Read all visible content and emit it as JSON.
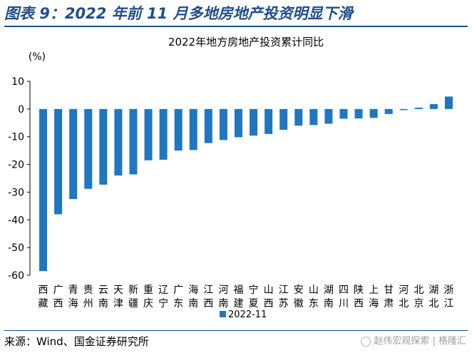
{
  "figure_title": "图表 9：2022 年前 11 月多地房地产投资明显下滑",
  "source": "来源：Wind、国金证券研究所",
  "watermark": "赵伟宏观探索 | 格隆汇",
  "colors": {
    "bar": "#1f77c0",
    "title": "#1f4e8c"
  },
  "chart_data": {
    "type": "bar",
    "title": "2022年地方房地产投资累计同比",
    "unit_label": "(%)",
    "ylim": [
      -60,
      10
    ],
    "yticks": [
      10,
      0,
      -10,
      -20,
      -30,
      -40,
      -50,
      -60
    ],
    "legend": {
      "label": "2022-11",
      "position": "bottom-left"
    },
    "categories": [
      "西藏",
      "广西",
      "青海",
      "贵州",
      "云南",
      "天津",
      "新疆",
      "重庆",
      "辽宁",
      "广东",
      "海南",
      "江西",
      "河南",
      "福建",
      "宁夏",
      "山西",
      "江苏",
      "安徽",
      "山东",
      "湖南",
      "四川",
      "陕西",
      "上海",
      "甘肃",
      "河北",
      "北京",
      "湖北",
      "浙江"
    ],
    "series": [
      {
        "name": "2022-11",
        "values": [
          -58.5,
          -38,
          -32.5,
          -28.8,
          -27.3,
          -24,
          -23.6,
          -18.5,
          -18.3,
          -15,
          -14.8,
          -12.3,
          -11.2,
          -10.2,
          -9.6,
          -9,
          -7.5,
          -6,
          -5.8,
          -5.3,
          -3.5,
          -3.4,
          -3.2,
          -1.8,
          -0.4,
          0.5,
          1.8,
          4.5
        ]
      }
    ]
  }
}
